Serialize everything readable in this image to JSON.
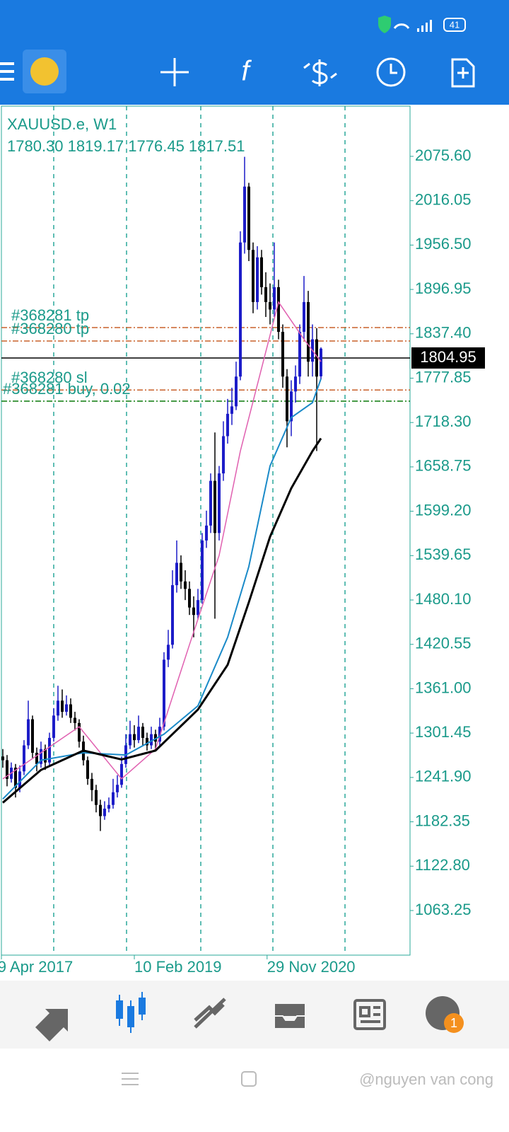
{
  "status_bar": {
    "battery": "41"
  },
  "chart_data": {
    "type": "candlestick",
    "symbol": "XAUUSD.e, W1",
    "ohlc": "1780.30 1819.17 1776.45 1817.51",
    "up_color": "#1c1cc8",
    "down_color": "#000000",
    "candles": [
      [
        1270,
        1280,
        1255,
        1265
      ],
      [
        1265,
        1272,
        1230,
        1240
      ],
      [
        1240,
        1262,
        1235,
        1255
      ],
      [
        1255,
        1260,
        1215,
        1228
      ],
      [
        1228,
        1258,
        1222,
        1250
      ],
      [
        1250,
        1292,
        1245,
        1285
      ],
      [
        1285,
        1345,
        1280,
        1320
      ],
      [
        1320,
        1325,
        1268,
        1275
      ],
      [
        1275,
        1282,
        1250,
        1260
      ],
      [
        1260,
        1290,
        1255,
        1280
      ],
      [
        1280,
        1286,
        1252,
        1262
      ],
      [
        1262,
        1302,
        1258,
        1295
      ],
      [
        1295,
        1335,
        1290,
        1325
      ],
      [
        1325,
        1365,
        1318,
        1345
      ],
      [
        1345,
        1360,
        1322,
        1330
      ],
      [
        1330,
        1352,
        1325,
        1340
      ],
      [
        1340,
        1348,
        1315,
        1322
      ],
      [
        1322,
        1330,
        1305,
        1315
      ],
      [
        1315,
        1320,
        1282,
        1290
      ],
      [
        1290,
        1298,
        1258,
        1265
      ],
      [
        1265,
        1270,
        1232,
        1240
      ],
      [
        1240,
        1248,
        1210,
        1225
      ],
      [
        1225,
        1232,
        1195,
        1205
      ],
      [
        1205,
        1212,
        1170,
        1190
      ],
      [
        1190,
        1210,
        1185,
        1200
      ],
      [
        1200,
        1215,
        1195,
        1205
      ],
      [
        1205,
        1240,
        1200,
        1222
      ],
      [
        1222,
        1245,
        1215,
        1232
      ],
      [
        1232,
        1270,
        1228,
        1260
      ],
      [
        1260,
        1300,
        1255,
        1285
      ],
      [
        1285,
        1318,
        1280,
        1300
      ],
      [
        1300,
        1312,
        1282,
        1292
      ],
      [
        1292,
        1325,
        1288,
        1310
      ],
      [
        1310,
        1315,
        1285,
        1295
      ],
      [
        1295,
        1302,
        1278,
        1285
      ],
      [
        1285,
        1310,
        1280,
        1300
      ],
      [
        1300,
        1306,
        1280,
        1290
      ],
      [
        1290,
        1322,
        1285,
        1310
      ],
      [
        1310,
        1410,
        1305,
        1400
      ],
      [
        1400,
        1440,
        1390,
        1420
      ],
      [
        1420,
        1520,
        1415,
        1500
      ],
      [
        1500,
        1560,
        1490,
        1530
      ],
      [
        1530,
        1540,
        1495,
        1505
      ],
      [
        1505,
        1520,
        1480,
        1495
      ],
      [
        1495,
        1505,
        1460,
        1470
      ],
      [
        1470,
        1485,
        1430,
        1460
      ],
      [
        1460,
        1495,
        1455,
        1480
      ],
      [
        1480,
        1570,
        1475,
        1560
      ],
      [
        1560,
        1600,
        1550,
        1580
      ],
      [
        1580,
        1650,
        1570,
        1640
      ],
      [
        1640,
        1705,
        1455,
        1570
      ],
      [
        1570,
        1660,
        1560,
        1650
      ],
      [
        1650,
        1720,
        1640,
        1700
      ],
      [
        1700,
        1750,
        1690,
        1730
      ],
      [
        1730,
        1765,
        1715,
        1740
      ],
      [
        1740,
        1800,
        1735,
        1780
      ],
      [
        1780,
        1975,
        1775,
        1960
      ],
      [
        1960,
        2075,
        1945,
        2035
      ],
      [
        2035,
        2040,
        1935,
        1950
      ],
      [
        1950,
        1960,
        1865,
        1880
      ],
      [
        1880,
        1955,
        1870,
        1940
      ],
      [
        1940,
        1950,
        1890,
        1900
      ],
      [
        1900,
        1920,
        1860,
        1880
      ],
      [
        1880,
        1905,
        1850,
        1870
      ],
      [
        1870,
        1960,
        1860,
        1900
      ],
      [
        1900,
        1910,
        1830,
        1840
      ],
      [
        1840,
        1850,
        1765,
        1780
      ],
      [
        1780,
        1790,
        1685,
        1720
      ],
      [
        1720,
        1775,
        1700,
        1760
      ],
      [
        1760,
        1795,
        1745,
        1780
      ],
      [
        1780,
        1850,
        1770,
        1840
      ],
      [
        1840,
        1915,
        1830,
        1880
      ],
      [
        1880,
        1895,
        1780,
        1800
      ],
      [
        1800,
        1850,
        1780,
        1830
      ],
      [
        1830,
        1845,
        1680,
        1780
      ],
      [
        1780.3,
        1819.17,
        1776.45,
        1817.51
      ]
    ],
    "ylim": [
      1003.4,
      2143.0
    ],
    "xlim": [
      -0.33,
      96
    ],
    "yticks": [
      {
        "value": 2075.6,
        "label": "2075.60"
      },
      2016.05,
      {
        "value": 1956.5,
        "label": "1956.50"
      },
      1896.95,
      {
        "value": 1837.4,
        "label": "1837.40"
      },
      1777.85,
      {
        "value": 1718.3,
        "label": "1718.30"
      },
      1658.75,
      {
        "value": 1599.2,
        "label": "1599.20"
      },
      1539.65,
      {
        "value": 1480.1,
        "label": "1480.10"
      },
      1420.55,
      {
        "value": 1361.0,
        "label": "1361.00"
      },
      1301.45,
      {
        "value": 1241.9,
        "label": "1241.90"
      },
      1182.35,
      {
        "value": 1122.8,
        "label": "1122.80"
      },
      1063.25
    ],
    "xticks": [
      {
        "value": -1.2,
        "label": "9 Apr 2017"
      },
      {
        "value": 31,
        "label": "10 Feb 2019"
      },
      {
        "value": 62.3,
        "label": "29 Nov 2020"
      }
    ],
    "xgrid": [
      12,
      29.17,
      46.67,
      63.67,
      80.67
    ],
    "grid": true,
    "current_price": 1804.95,
    "moving_averages": [
      {
        "color": "#e060b0",
        "x": [
          0,
          18,
          28,
          36,
          44,
          51,
          56,
          65,
          71,
          75
        ],
        "values": [
          1240,
          1310,
          1240,
          1280,
          1420,
          1540,
          1680,
          1880,
          1830,
          1800
        ]
      },
      {
        "color": "#1a8ac8",
        "x": [
          0,
          9,
          19,
          29,
          38,
          46,
          53,
          58,
          63,
          68,
          73,
          75
        ],
        "values": [
          1213,
          1265,
          1275,
          1272,
          1300,
          1338,
          1430,
          1525,
          1660,
          1725,
          1745,
          1777
        ]
      },
      {
        "color": "#000000",
        "x": [
          0,
          9,
          19,
          28,
          36,
          46,
          53,
          58,
          63,
          68,
          73,
          75
        ],
        "values": [
          1208,
          1252,
          1278,
          1266,
          1278,
          1333,
          1393,
          1477,
          1565,
          1630,
          1680,
          1697
        ]
      }
    ],
    "orders": [
      {
        "label": "#368281 tp",
        "price": 1845.8,
        "color": "#c8602a"
      },
      {
        "label": "#368280 tp",
        "price": 1827.7,
        "color": "#c8602a"
      },
      {
        "label": "#368280 sl",
        "price": 1762,
        "color": "#c8602a"
      },
      {
        "label": "#368281 buy, 0.02",
        "price": 1747,
        "color": "#0a7a0a"
      }
    ]
  },
  "bottom_nav": {
    "badge": "1"
  },
  "watermark": "@nguyen van cong"
}
